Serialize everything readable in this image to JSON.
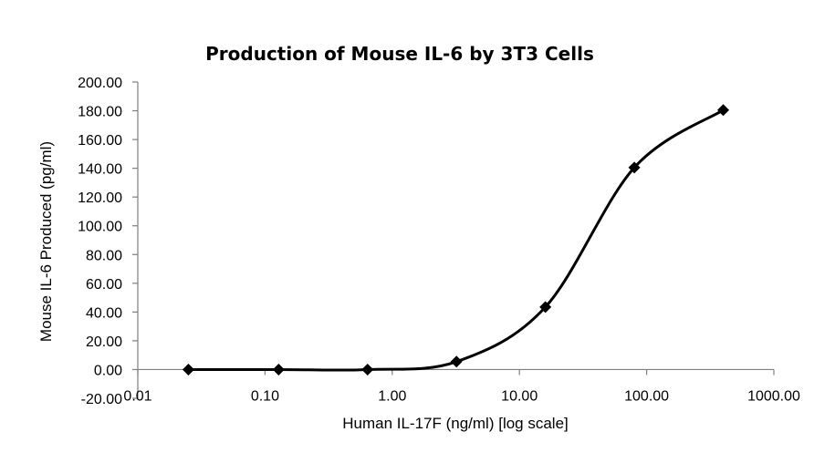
{
  "chart_data": {
    "type": "scatter",
    "title": "Production of Mouse IL-6 by 3T3 Cells",
    "xlabel": "Human IL-17F (ng/ml) [log scale]",
    "ylabel": "Mouse IL-6 Produced (pg/ml)",
    "xscale": "log",
    "xlim": [
      0.01,
      1000
    ],
    "ylim": [
      -20,
      200
    ],
    "x_ticks": [
      "0.01",
      "0.10",
      "1.00",
      "10.00",
      "100.00",
      "1000.00"
    ],
    "y_ticks": [
      "-20.00",
      "0.00",
      "20.00",
      "40.00",
      "60.00",
      "80.00",
      "100.00",
      "120.00",
      "140.00",
      "160.00",
      "180.00",
      "200.00"
    ],
    "grid": false,
    "legend": "none",
    "series": [
      {
        "marker": "diamond",
        "line": "smooth",
        "color": "#000000",
        "x": [
          0.025,
          0.128,
          0.64,
          3.2,
          16,
          80,
          400
        ],
        "y": [
          0.0,
          0.0,
          0.0,
          5.5,
          43.5,
          140.5,
          180.5
        ]
      }
    ]
  }
}
